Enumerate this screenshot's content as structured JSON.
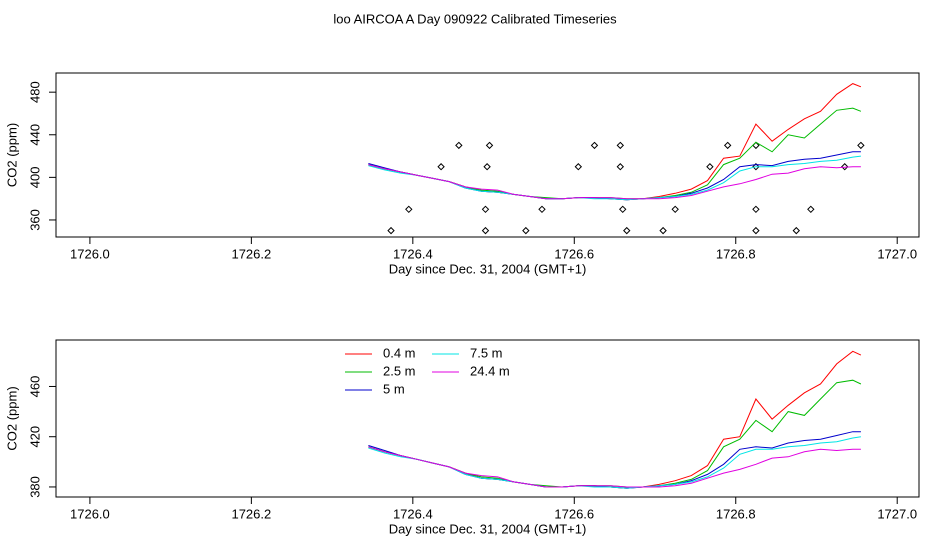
{
  "title": "loo AIRCOA A  Day 090922  Calibrated Timeseries",
  "chart_data": [
    {
      "type": "line",
      "xlabel": "Day since Dec. 31, 2004 (GMT+1)",
      "ylabel": "CO2 (ppm)",
      "xlim": [
        1725.958,
        1727.027
      ],
      "ylim": [
        344,
        498
      ],
      "xticks": [
        {
          "value": 1726,
          "label": "1726.0"
        },
        1726.2,
        1726.4,
        1726.6,
        1726.8,
        {
          "value": 1727,
          "label": "1727.0"
        }
      ],
      "yticks": [
        360,
        400,
        440,
        480
      ],
      "x": [
        1726.345,
        1726.365,
        1726.385,
        1726.405,
        1726.425,
        1726.445,
        1726.465,
        1726.485,
        1726.505,
        1726.525,
        1726.545,
        1726.565,
        1726.585,
        1726.605,
        1726.625,
        1726.645,
        1726.665,
        1726.685,
        1726.705,
        1726.725,
        1726.745,
        1726.765,
        1726.785,
        1726.805,
        1726.825,
        1726.845,
        1726.865,
        1726.885,
        1726.905,
        1726.925,
        1726.945,
        1726.955
      ],
      "series": [
        {
          "name": "0.4 m",
          "color": "#ff0000",
          "values": [
            412,
            408,
            405,
            402,
            399,
            396,
            391,
            387,
            386,
            384,
            382,
            380,
            380,
            381,
            381,
            380,
            379,
            380,
            382,
            385,
            389,
            397,
            418,
            420,
            450,
            434,
            445,
            455,
            462,
            478,
            488,
            485
          ]
        },
        {
          "name": "2.5 m",
          "color": "#00bb00",
          "values": [
            412,
            408,
            405,
            402,
            399,
            396,
            391,
            388,
            387,
            384,
            382,
            381,
            380,
            381,
            381,
            381,
            380,
            380,
            381,
            383,
            386,
            393,
            412,
            418,
            433,
            424,
            440,
            437,
            450,
            463,
            465,
            462
          ]
        },
        {
          "name": "5 m",
          "color": "#0000cc",
          "values": [
            413,
            409,
            405,
            402,
            399,
            396,
            390,
            387,
            386,
            384,
            382,
            380,
            380,
            381,
            381,
            380,
            379,
            380,
            381,
            382,
            385,
            390,
            398,
            410,
            412,
            411,
            415,
            417,
            418,
            421,
            424,
            424
          ]
        },
        {
          "name": "7.5 m",
          "color": "#00e5e5",
          "values": [
            411,
            407,
            404,
            402,
            399,
            396,
            390,
            387,
            386,
            384,
            382,
            380,
            380,
            381,
            380,
            380,
            379,
            380,
            381,
            382,
            384,
            388,
            395,
            406,
            410,
            410,
            412,
            413,
            415,
            416,
            419,
            420
          ]
        },
        {
          "name": "24.4 m",
          "color": "#e000e0",
          "values": [
            412,
            408,
            405,
            402,
            399,
            396,
            391,
            389,
            388,
            384,
            382,
            380,
            380,
            381,
            381,
            381,
            380,
            380,
            380,
            381,
            383,
            387,
            391,
            394,
            398,
            403,
            404,
            408,
            410,
            409,
            410,
            410
          ]
        }
      ],
      "points": {
        "x": [
          1726.373,
          1726.395,
          1726.435,
          1726.457,
          1726.49,
          1726.49,
          1726.492,
          1726.495,
          1726.54,
          1726.56,
          1726.605,
          1726.625,
          1726.657,
          1726.657,
          1726.66,
          1726.665,
          1726.71,
          1726.725,
          1726.768,
          1726.79,
          1726.825,
          1726.825,
          1726.825,
          1726.825,
          1726.875,
          1726.893,
          1726.935,
          1726.955
        ],
        "values": [
          350,
          370,
          410,
          430,
          350,
          370,
          410,
          430,
          350,
          370,
          410,
          430,
          430,
          410,
          370,
          350,
          350,
          370,
          410,
          430,
          350,
          370,
          410,
          430,
          350,
          370,
          410,
          430
        ]
      }
    },
    {
      "type": "line",
      "xlabel": "Day since Dec. 31, 2004 (GMT+1)",
      "ylabel": "CO2 (ppm)",
      "xlim": [
        1725.958,
        1727.027
      ],
      "ylim": [
        372,
        497
      ],
      "xticks": [
        {
          "value": 1726,
          "label": "1726.0"
        },
        1726.2,
        1726.4,
        1726.6,
        1726.8,
        {
          "value": 1727,
          "label": "1727.0"
        }
      ],
      "yticks": [
        380,
        420,
        460
      ],
      "legend": "top",
      "x": [
        1726.345,
        1726.365,
        1726.385,
        1726.405,
        1726.425,
        1726.445,
        1726.465,
        1726.485,
        1726.505,
        1726.525,
        1726.545,
        1726.565,
        1726.585,
        1726.605,
        1726.625,
        1726.645,
        1726.665,
        1726.685,
        1726.705,
        1726.725,
        1726.745,
        1726.765,
        1726.785,
        1726.805,
        1726.825,
        1726.845,
        1726.865,
        1726.885,
        1726.905,
        1726.925,
        1726.945,
        1726.955
      ],
      "series": [
        {
          "name": "0.4 m",
          "color": "#ff0000",
          "values": [
            412,
            408,
            405,
            402,
            399,
            396,
            391,
            387,
            386,
            384,
            382,
            380,
            380,
            381,
            381,
            380,
            379,
            380,
            382,
            385,
            389,
            397,
            418,
            420,
            450,
            434,
            445,
            455,
            462,
            478,
            488,
            485
          ]
        },
        {
          "name": "2.5 m",
          "color": "#00bb00",
          "values": [
            412,
            408,
            405,
            402,
            399,
            396,
            391,
            388,
            387,
            384,
            382,
            381,
            380,
            381,
            381,
            381,
            380,
            380,
            381,
            383,
            386,
            393,
            412,
            418,
            433,
            424,
            440,
            437,
            450,
            463,
            465,
            462
          ]
        },
        {
          "name": "5 m",
          "color": "#0000cc",
          "values": [
            413,
            409,
            405,
            402,
            399,
            396,
            390,
            387,
            386,
            384,
            382,
            380,
            380,
            381,
            381,
            380,
            379,
            380,
            381,
            382,
            385,
            390,
            398,
            410,
            412,
            411,
            415,
            417,
            418,
            421,
            424,
            424
          ]
        },
        {
          "name": "7.5 m",
          "color": "#00e5e5",
          "values": [
            411,
            407,
            404,
            402,
            399,
            396,
            390,
            387,
            386,
            384,
            382,
            380,
            380,
            381,
            380,
            380,
            379,
            380,
            381,
            382,
            384,
            388,
            395,
            406,
            410,
            410,
            412,
            413,
            415,
            416,
            419,
            420
          ]
        },
        {
          "name": "24.4 m",
          "color": "#e000e0",
          "values": [
            412,
            408,
            405,
            402,
            399,
            396,
            391,
            389,
            388,
            384,
            382,
            380,
            380,
            381,
            381,
            381,
            380,
            380,
            380,
            381,
            383,
            387,
            391,
            394,
            398,
            403,
            404,
            408,
            410,
            409,
            410,
            410
          ]
        }
      ]
    }
  ]
}
